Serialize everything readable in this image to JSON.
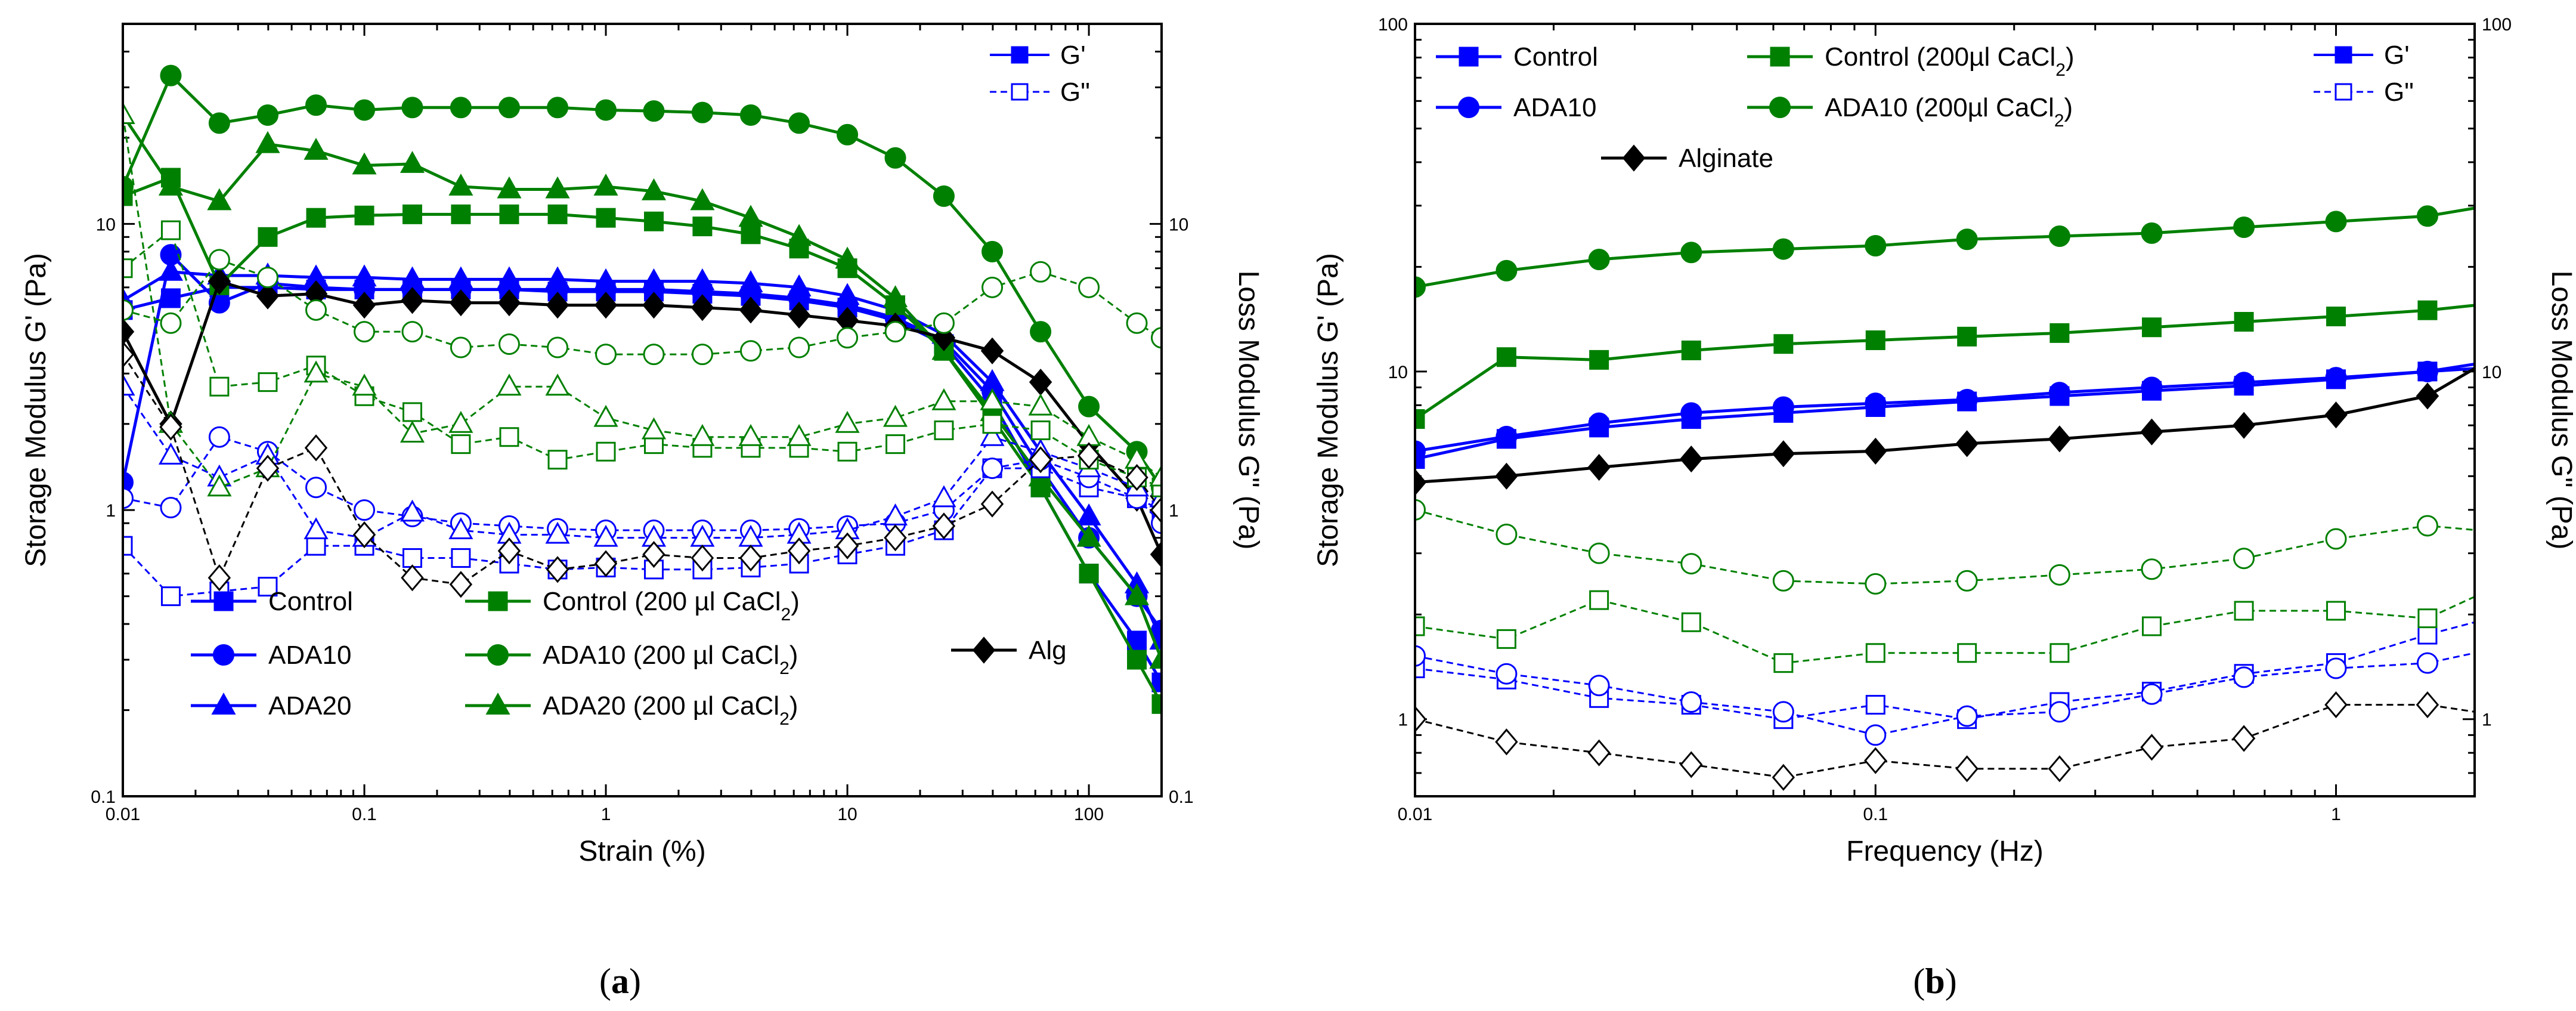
{
  "colors": {
    "blue": "#0000ff",
    "green": "#008000",
    "black": "#000000"
  },
  "panel_labels": {
    "a": "a",
    "b": "b"
  },
  "legend_mode": {
    "solid": "G'",
    "dashed": "G\""
  },
  "chart_data": [
    {
      "id": "a",
      "type": "line",
      "xscale": "log",
      "yscale": "log",
      "xlabel": "Strain (%)",
      "ylabel": "Storage Modulus G' (Pa)",
      "y2label": "Loss Modulus G\" (Pa)",
      "xlim": [
        0.01,
        200
      ],
      "ylim": [
        0.1,
        50
      ],
      "y2lim": [
        0.1,
        50
      ],
      "xticks": [
        {
          "v": 0.01,
          "label": "0.01"
        },
        {
          "v": 0.1,
          "label": "0.1"
        },
        {
          "v": 1,
          "label": "1"
        },
        {
          "v": 10,
          "label": "10"
        },
        {
          "v": 100,
          "label": "100"
        }
      ],
      "yticks": [
        {
          "v": 0.1,
          "label": "0.1"
        },
        {
          "v": 1,
          "label": "1"
        },
        {
          "v": 10,
          "label": "10"
        }
      ],
      "y2ticks": [
        {
          "v": 0.1,
          "label": "0.1"
        },
        {
          "v": 1,
          "label": "1"
        },
        {
          "v": 10,
          "label": "10"
        }
      ],
      "legend_entries": [
        {
          "label": "Control",
          "color": "#0000ff",
          "marker": "square"
        },
        {
          "label": "ADA10",
          "color": "#0000ff",
          "marker": "circle"
        },
        {
          "label": "ADA20",
          "color": "#0000ff",
          "marker": "triangle"
        },
        {
          "label": "Control (200 µl CaCl₂)",
          "color": "#008000",
          "marker": "square"
        },
        {
          "label": "ADA10 (200 µl CaCl₂)",
          "color": "#008000",
          "marker": "circle"
        },
        {
          "label": "ADA20 (200 µl CaCl₂)",
          "color": "#008000",
          "marker": "triangle"
        },
        {
          "label": "Alg",
          "color": "#000000",
          "marker": "diamond"
        }
      ],
      "x": [
        0.01,
        0.0158,
        0.0251,
        0.0398,
        0.0631,
        0.1,
        0.158,
        0.251,
        0.398,
        0.631,
        1,
        1.58,
        2.51,
        3.98,
        6.31,
        10,
        15.8,
        25.1,
        39.8,
        63.1,
        100,
        158,
        200
      ],
      "series": [
        {
          "name": "Control G'",
          "color": "#0000ff",
          "marker": "square",
          "modulus": "G'",
          "values": [
            5.0,
            5.5,
            6.0,
            6.0,
            5.9,
            5.9,
            5.9,
            5.9,
            5.9,
            5.8,
            5.8,
            5.8,
            5.7,
            5.6,
            5.4,
            5.1,
            4.6,
            3.8,
            2.4,
            1.2,
            0.6,
            0.35,
            0.25
          ]
        },
        {
          "name": "ADA10 G'",
          "color": "#0000ff",
          "marker": "circle",
          "modulus": "G'",
          "values": [
            1.25,
            7.8,
            5.3,
            6.2,
            6.0,
            5.9,
            5.9,
            5.9,
            5.9,
            5.9,
            5.9,
            5.9,
            5.8,
            5.7,
            5.5,
            5.2,
            4.7,
            3.9,
            2.6,
            1.4,
            0.8,
            0.5,
            0.38
          ]
        },
        {
          "name": "ADA20 G'",
          "color": "#0000ff",
          "marker": "triangle",
          "modulus": "G'",
          "values": [
            5.4,
            6.8,
            6.6,
            6.6,
            6.5,
            6.5,
            6.4,
            6.4,
            6.4,
            6.4,
            6.3,
            6.3,
            6.3,
            6.2,
            6.0,
            5.6,
            5.0,
            4.1,
            2.8,
            1.6,
            0.95,
            0.55,
            0.35
          ]
        },
        {
          "name": "Control (200 µl CaCl₂) G'",
          "color": "#008000",
          "marker": "square",
          "modulus": "G'",
          "values": [
            12.5,
            14.5,
            6.1,
            9.0,
            10.5,
            10.7,
            10.8,
            10.8,
            10.8,
            10.8,
            10.5,
            10.2,
            9.8,
            9.2,
            8.2,
            7.0,
            5.2,
            3.6,
            2.1,
            1.2,
            0.6,
            0.3,
            0.21
          ]
        },
        {
          "name": "ADA10 (200 µl CaCl₂) G'",
          "color": "#008000",
          "marker": "circle",
          "modulus": "G'",
          "values": [
            13.5,
            33.0,
            22.5,
            24.0,
            26.0,
            25.0,
            25.5,
            25.5,
            25.5,
            25.5,
            25.0,
            24.8,
            24.5,
            24.0,
            22.5,
            20.5,
            17.0,
            12.5,
            8.0,
            4.2,
            2.3,
            1.6,
            1.2
          ]
        },
        {
          "name": "ADA20 (200 µl CaCl₂) G'",
          "color": "#008000",
          "marker": "triangle",
          "modulus": "G'",
          "values": [
            24.0,
            13.5,
            12.0,
            19.0,
            18.0,
            16.0,
            16.2,
            13.5,
            13.2,
            13.2,
            13.5,
            13.0,
            12.0,
            10.5,
            9.0,
            7.5,
            5.5,
            3.6,
            2.2,
            1.3,
            0.8,
            0.5,
            0.3
          ]
        },
        {
          "name": "Alg G'",
          "color": "#000000",
          "marker": "diamond",
          "modulus": "G'",
          "values": [
            4.2,
            2.0,
            6.3,
            5.6,
            5.7,
            5.2,
            5.4,
            5.3,
            5.3,
            5.2,
            5.2,
            5.2,
            5.1,
            5.0,
            4.8,
            4.6,
            4.4,
            4.0,
            3.6,
            2.8,
            1.7,
            1.1,
            0.7
          ]
        },
        {
          "name": "Control G\"",
          "color": "#0000ff",
          "marker": "square",
          "modulus": "G\"",
          "values": [
            0.75,
            0.5,
            0.52,
            0.54,
            0.75,
            0.75,
            0.68,
            0.68,
            0.65,
            0.62,
            0.63,
            0.62,
            0.62,
            0.63,
            0.65,
            0.7,
            0.75,
            0.85,
            1.4,
            1.4,
            1.2,
            1.1,
            1.0
          ]
        },
        {
          "name": "ADA10 G\"",
          "color": "#0000ff",
          "marker": "circle",
          "modulus": "G\"",
          "values": [
            1.1,
            1.02,
            1.8,
            1.6,
            1.2,
            1.0,
            0.95,
            0.9,
            0.88,
            0.86,
            0.85,
            0.85,
            0.85,
            0.85,
            0.86,
            0.88,
            0.9,
            1.0,
            1.4,
            1.5,
            1.3,
            1.1,
            0.9
          ]
        },
        {
          "name": "ADA20 G\"",
          "color": "#0000ff",
          "marker": "triangle",
          "modulus": "G\"",
          "values": [
            2.7,
            1.55,
            1.3,
            1.55,
            0.85,
            0.8,
            0.98,
            0.85,
            0.82,
            0.82,
            0.8,
            0.8,
            0.8,
            0.8,
            0.82,
            0.85,
            0.95,
            1.1,
            1.8,
            1.6,
            1.4,
            1.2,
            1.1
          ]
        },
        {
          "name": "Control (200 µl CaCl₂) G\"",
          "color": "#008000",
          "marker": "square",
          "modulus": "G\"",
          "values": [
            7.0,
            9.5,
            2.7,
            2.8,
            3.2,
            2.5,
            2.2,
            1.7,
            1.8,
            1.5,
            1.6,
            1.7,
            1.65,
            1.65,
            1.65,
            1.6,
            1.7,
            1.9,
            2.0,
            1.9,
            1.5,
            1.3,
            1.2
          ]
        },
        {
          "name": "ADA10 (200 µl CaCl₂) G\"",
          "color": "#008000",
          "marker": "circle",
          "modulus": "G\"",
          "values": [
            5.0,
            4.5,
            7.5,
            6.5,
            5.0,
            4.2,
            4.2,
            3.7,
            3.8,
            3.7,
            3.5,
            3.5,
            3.5,
            3.6,
            3.7,
            4.0,
            4.2,
            4.5,
            6.0,
            6.8,
            6.0,
            4.5,
            4.0
          ]
        },
        {
          "name": "ADA20 (200 µl CaCl₂) G\"",
          "color": "#008000",
          "marker": "triangle",
          "modulus": "G\"",
          "values": [
            24.0,
            2.0,
            1.2,
            1.4,
            3.0,
            2.7,
            1.85,
            2.0,
            2.7,
            2.7,
            2.1,
            1.9,
            1.8,
            1.8,
            1.8,
            2.0,
            2.1,
            2.4,
            2.4,
            2.3,
            1.8,
            1.5,
            1.3
          ]
        },
        {
          "name": "Alg G\"",
          "color": "#000000",
          "marker": "diamond",
          "modulus": "G\"",
          "values": [
            3.5,
            1.95,
            0.58,
            1.4,
            1.65,
            0.82,
            0.58,
            0.55,
            0.72,
            0.62,
            0.65,
            0.7,
            0.68,
            0.68,
            0.72,
            0.75,
            0.8,
            0.88,
            1.05,
            1.5,
            1.55,
            1.3,
            1.0
          ]
        }
      ]
    },
    {
      "id": "b",
      "type": "line",
      "xscale": "log",
      "yscale": "log",
      "xlabel": "Frequency (Hz)",
      "ylabel": "Storage Modulus G' (Pa)",
      "y2label": "Loss Modulus G\" (Pa)",
      "xlim": [
        0.01,
        2
      ],
      "ylim": [
        0.6,
        100
      ],
      "y2lim": [
        0.6,
        100
      ],
      "xticks": [
        {
          "v": 0.01,
          "label": "0.01"
        },
        {
          "v": 0.1,
          "label": "0.1"
        },
        {
          "v": 1,
          "label": "1"
        }
      ],
      "yticks": [
        {
          "v": 1,
          "label": "1"
        },
        {
          "v": 10,
          "label": "10"
        },
        {
          "v": 100,
          "label": "100"
        }
      ],
      "y2ticks": [
        {
          "v": 1,
          "label": "1"
        },
        {
          "v": 10,
          "label": "10"
        },
        {
          "v": 100,
          "label": "100"
        }
      ],
      "legend_entries": [
        {
          "label": "Control",
          "color": "#0000ff",
          "marker": "square"
        },
        {
          "label": "Control (200µl CaCl₂)",
          "color": "#008000",
          "marker": "square"
        },
        {
          "label": "ADA10",
          "color": "#0000ff",
          "marker": "circle"
        },
        {
          "label": "ADA10 (200µl CaCl₂)",
          "color": "#008000",
          "marker": "circle"
        },
        {
          "label": "Alginate",
          "color": "#000000",
          "marker": "diamond"
        }
      ],
      "x": [
        0.01,
        0.0158,
        0.0251,
        0.0398,
        0.0631,
        0.1,
        0.158,
        0.251,
        0.398,
        0.631,
        1,
        1.58,
        2
      ],
      "series": [
        {
          "name": "Control G'",
          "color": "#0000ff",
          "marker": "square",
          "modulus": "G'",
          "values": [
            5.6,
            6.4,
            6.9,
            7.3,
            7.6,
            7.9,
            8.2,
            8.5,
            8.8,
            9.1,
            9.5,
            10.0,
            10.2
          ]
        },
        {
          "name": "ADA10 G'",
          "color": "#0000ff",
          "marker": "circle",
          "modulus": "G'",
          "values": [
            5.9,
            6.5,
            7.1,
            7.6,
            7.9,
            8.1,
            8.3,
            8.7,
            9.0,
            9.3,
            9.6,
            10.0,
            10.5
          ]
        },
        {
          "name": "Control (200µl CaCl₂) G'",
          "color": "#008000",
          "marker": "square",
          "modulus": "G'",
          "values": [
            7.3,
            11.0,
            10.8,
            11.5,
            12.0,
            12.3,
            12.6,
            12.9,
            13.4,
            13.9,
            14.4,
            15.0,
            15.5
          ]
        },
        {
          "name": "ADA10 (200µl CaCl₂) G'",
          "color": "#008000",
          "marker": "circle",
          "modulus": "G'",
          "values": [
            17.5,
            19.5,
            21.0,
            22.0,
            22.5,
            23.0,
            24.0,
            24.5,
            25.0,
            26.0,
            27.0,
            28.0,
            29.5
          ]
        },
        {
          "name": "Alginate G'",
          "color": "#000000",
          "marker": "diamond",
          "modulus": "G'",
          "values": [
            4.8,
            5.0,
            5.3,
            5.6,
            5.8,
            5.9,
            6.2,
            6.4,
            6.7,
            7.0,
            7.5,
            8.5,
            10.2
          ]
        },
        {
          "name": "Control G\"",
          "color": "#0000ff",
          "marker": "square",
          "modulus": "G\"",
          "values": [
            1.4,
            1.3,
            1.15,
            1.1,
            1.0,
            1.1,
            1.0,
            1.12,
            1.2,
            1.35,
            1.45,
            1.75,
            1.9
          ]
        },
        {
          "name": "ADA10 G\"",
          "color": "#0000ff",
          "marker": "circle",
          "modulus": "G\"",
          "values": [
            1.52,
            1.35,
            1.25,
            1.12,
            1.05,
            0.9,
            1.02,
            1.05,
            1.18,
            1.32,
            1.4,
            1.45,
            1.55
          ]
        },
        {
          "name": "Control (200µl CaCl₂) G\"",
          "color": "#008000",
          "marker": "square",
          "modulus": "G\"",
          "values": [
            1.85,
            1.7,
            2.2,
            1.9,
            1.45,
            1.55,
            1.55,
            1.55,
            1.85,
            2.05,
            2.05,
            1.95,
            2.25
          ]
        },
        {
          "name": "ADA10 (200µl CaCl₂) G\"",
          "color": "#008000",
          "marker": "circle",
          "modulus": "G\"",
          "values": [
            4.0,
            3.4,
            3.0,
            2.8,
            2.5,
            2.45,
            2.5,
            2.6,
            2.7,
            2.9,
            3.3,
            3.6,
            3.5
          ]
        },
        {
          "name": "Alginate G\"",
          "color": "#000000",
          "marker": "diamond",
          "modulus": "G\"",
          "values": [
            1.0,
            0.86,
            0.8,
            0.74,
            0.68,
            0.76,
            0.72,
            0.72,
            0.83,
            0.88,
            1.1,
            1.1,
            1.05
          ]
        }
      ]
    }
  ]
}
